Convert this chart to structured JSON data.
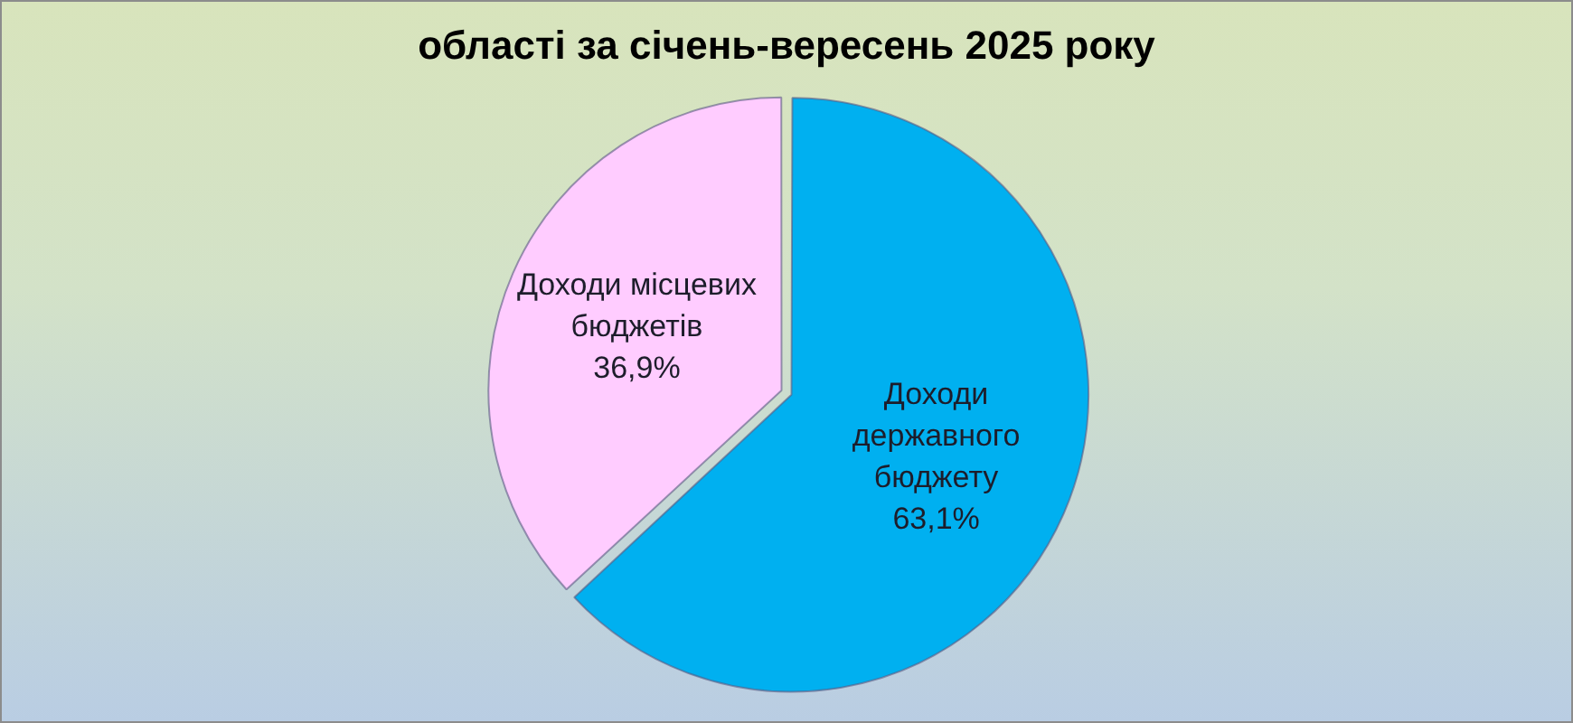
{
  "chart_data": {
    "type": "pie",
    "title": "області за січень-вересень 2025 року",
    "categories": [
      "Доходи державного бюджету",
      "Доходи місцевих бюджетів"
    ],
    "values": [
      63.1,
      36.9
    ],
    "colors": [
      "#00b0f0",
      "#ffccff"
    ],
    "value_labels": [
      "63,1%",
      "36,9%"
    ]
  }
}
